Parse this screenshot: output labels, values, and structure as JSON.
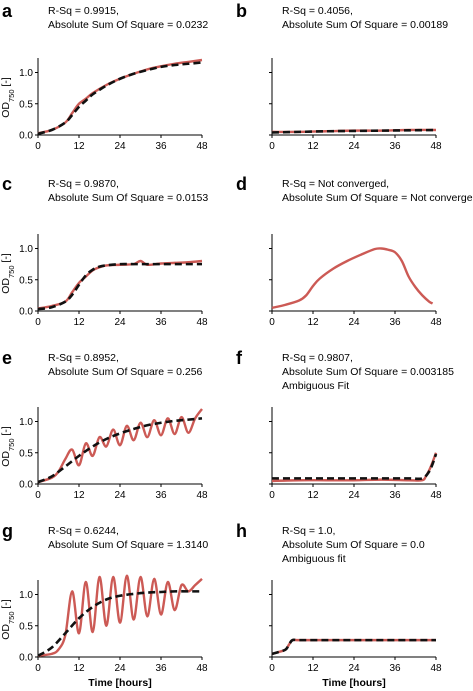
{
  "figure": {
    "ylabel_main": "OD",
    "ylabel_sub": "750",
    "ylabel_unit": " [-]",
    "xlabel": "Time [hours]"
  },
  "colors": {
    "data": "#cc5a55",
    "fit": "#111111"
  },
  "chart_data": [
    {
      "panel": "a",
      "type": "line",
      "xlabel": "",
      "ylabel": "OD750 [-]",
      "annotations": [
        "R-Sq = 0.9915,",
        "Absolute Sum Of Square = 0.0232"
      ],
      "xlim": [
        0,
        48
      ],
      "ylim": [
        0,
        1.2
      ],
      "xticks": [
        "0",
        "12",
        "24",
        "36",
        "48"
      ],
      "yticks": [
        "0.0",
        "0.5",
        "1.0"
      ],
      "series": [
        {
          "role": "data",
          "x": [
            0,
            4,
            8,
            10,
            12,
            14,
            16,
            20,
            24,
            28,
            32,
            36,
            40,
            44,
            48
          ],
          "y": [
            0.03,
            0.08,
            0.2,
            0.35,
            0.5,
            0.58,
            0.67,
            0.8,
            0.9,
            0.98,
            1.05,
            1.1,
            1.14,
            1.17,
            1.2
          ]
        },
        {
          "role": "fit",
          "x": [
            0,
            4,
            8,
            10,
            12,
            14,
            16,
            20,
            24,
            28,
            32,
            36,
            40,
            44,
            48
          ],
          "y": [
            0.02,
            0.08,
            0.2,
            0.32,
            0.45,
            0.55,
            0.65,
            0.79,
            0.9,
            0.98,
            1.04,
            1.09,
            1.12,
            1.14,
            1.16
          ]
        }
      ]
    },
    {
      "panel": "b",
      "type": "line",
      "xlabel": "",
      "ylabel": "",
      "annotations": [
        "R-Sq = 0.4056,",
        "Absolute Sum Of Square = 0.00189"
      ],
      "xlim": [
        0,
        48
      ],
      "ylim": [
        0,
        1.2
      ],
      "xticks": [
        "0",
        "12",
        "24",
        "36",
        "48"
      ],
      "yticks": [],
      "series": [
        {
          "role": "data",
          "x": [
            0,
            8,
            16,
            24,
            32,
            40,
            48
          ],
          "y": [
            0.05,
            0.05,
            0.06,
            0.07,
            0.07,
            0.08,
            0.08
          ]
        },
        {
          "role": "fit",
          "x": [
            0,
            8,
            16,
            24,
            32,
            40,
            48
          ],
          "y": [
            0.04,
            0.05,
            0.06,
            0.065,
            0.07,
            0.075,
            0.08
          ]
        }
      ]
    },
    {
      "panel": "c",
      "type": "line",
      "xlabel": "",
      "ylabel": "OD750 [-]",
      "annotations": [
        "R-Sq = 0.9870,",
        "Absolute Sum Of Square = 0.0153"
      ],
      "xlim": [
        0,
        48
      ],
      "ylim": [
        0,
        1.2
      ],
      "xticks": [
        "0",
        "12",
        "24",
        "36",
        "48"
      ],
      "yticks": [
        "0.0",
        "0.5",
        "1.0"
      ],
      "series": [
        {
          "role": "data",
          "x": [
            0,
            4,
            8,
            10,
            12,
            14,
            16,
            18,
            20,
            24,
            28,
            30,
            32,
            36,
            40,
            44,
            48
          ],
          "y": [
            0.04,
            0.08,
            0.15,
            0.3,
            0.45,
            0.55,
            0.65,
            0.7,
            0.73,
            0.74,
            0.75,
            0.8,
            0.74,
            0.76,
            0.77,
            0.78,
            0.8
          ]
        },
        {
          "role": "fit",
          "x": [
            0,
            4,
            8,
            10,
            12,
            14,
            16,
            18,
            20,
            24,
            28,
            32,
            36,
            40,
            44,
            48
          ],
          "y": [
            0.03,
            0.06,
            0.15,
            0.26,
            0.42,
            0.57,
            0.66,
            0.71,
            0.73,
            0.75,
            0.75,
            0.75,
            0.75,
            0.75,
            0.75,
            0.75
          ]
        }
      ]
    },
    {
      "panel": "d",
      "type": "line",
      "xlabel": "",
      "ylabel": "",
      "annotations": [
        "R-Sq = Not converged,",
        "Absolute Sum Of Square = Not converged"
      ],
      "xlim": [
        0,
        48
      ],
      "ylim": [
        0,
        1.2
      ],
      "xticks": [
        "0",
        "12",
        "24",
        "36",
        "48"
      ],
      "yticks": [],
      "series": [
        {
          "role": "data",
          "x": [
            0,
            4,
            8,
            10,
            12,
            14,
            18,
            22,
            26,
            30,
            32,
            34,
            36,
            38,
            40,
            42,
            44,
            46,
            47
          ],
          "y": [
            0.05,
            0.1,
            0.17,
            0.25,
            0.4,
            0.52,
            0.68,
            0.8,
            0.9,
            0.99,
            1.0,
            0.98,
            0.94,
            0.8,
            0.55,
            0.38,
            0.25,
            0.15,
            0.12
          ]
        }
      ]
    },
    {
      "panel": "e",
      "type": "line",
      "xlabel": "",
      "ylabel": "OD750 [-]",
      "annotations": [
        "R-Sq = 0.8952,",
        "Absolute Sum Of Square = 0.256"
      ],
      "xlim": [
        0,
        48
      ],
      "ylim": [
        0,
        1.2
      ],
      "xticks": [
        "0",
        "12",
        "24",
        "36",
        "48"
      ],
      "yticks": [
        "0.0",
        "0.5",
        "1.0"
      ],
      "series": [
        {
          "role": "data",
          "x": [
            0,
            4,
            6,
            8,
            10,
            12,
            14,
            16,
            18,
            20,
            22,
            24,
            26,
            28,
            30,
            32,
            34,
            36,
            38,
            40,
            42,
            44,
            46,
            48
          ],
          "y": [
            0.03,
            0.1,
            0.2,
            0.4,
            0.55,
            0.3,
            0.65,
            0.45,
            0.75,
            0.6,
            0.87,
            0.62,
            0.93,
            0.7,
            0.98,
            0.75,
            1.02,
            0.78,
            1.05,
            0.8,
            1.07,
            0.82,
            1.05,
            1.2
          ]
        },
        {
          "role": "fit",
          "x": [
            0,
            4,
            8,
            12,
            16,
            20,
            24,
            28,
            32,
            36,
            40,
            44,
            48
          ],
          "y": [
            0.03,
            0.12,
            0.28,
            0.45,
            0.6,
            0.72,
            0.81,
            0.88,
            0.94,
            0.98,
            1.01,
            1.03,
            1.05
          ]
        }
      ]
    },
    {
      "panel": "f",
      "type": "line",
      "xlabel": "",
      "ylabel": "",
      "annotations": [
        "R-Sq = 0.9807,",
        "Absolute Sum Of Square = 0.003185",
        "Ambiguous Fit"
      ],
      "xlim": [
        0,
        48
      ],
      "ylim": [
        0,
        1.2
      ],
      "xticks": [
        "0",
        "12",
        "24",
        "36",
        "48"
      ],
      "yticks": [],
      "series": [
        {
          "role": "data",
          "x": [
            0,
            8,
            16,
            24,
            32,
            40,
            44,
            45,
            46,
            47,
            48
          ],
          "y": [
            0.05,
            0.06,
            0.06,
            0.06,
            0.07,
            0.06,
            0.06,
            0.12,
            0.22,
            0.35,
            0.5
          ]
        },
        {
          "role": "fit",
          "x": [
            0,
            8,
            16,
            24,
            32,
            40,
            44,
            46,
            47,
            48
          ],
          "y": [
            0.09,
            0.09,
            0.09,
            0.09,
            0.09,
            0.09,
            0.09,
            0.2,
            0.32,
            0.48
          ]
        }
      ]
    },
    {
      "panel": "g",
      "type": "line",
      "xlabel": "Time [hours]",
      "ylabel": "OD750 [-]",
      "annotations": [
        "R-Sq = 0.6244,",
        "Absolute Sum Of Square = 1.3140"
      ],
      "xlim": [
        0,
        48
      ],
      "ylim": [
        0,
        1.2
      ],
      "xticks": [
        "0",
        "12",
        "24",
        "36",
        "48"
      ],
      "yticks": [
        "0.0",
        "0.5",
        "1.0"
      ],
      "series": [
        {
          "role": "data",
          "x": [
            0,
            4,
            6,
            8,
            10,
            12,
            14,
            16,
            18,
            20,
            22,
            24,
            26,
            28,
            30,
            32,
            34,
            36,
            38,
            40,
            42,
            44,
            46,
            48
          ],
          "y": [
            0.02,
            0.05,
            0.12,
            0.35,
            1.05,
            0.38,
            1.2,
            0.4,
            1.28,
            0.5,
            1.28,
            0.55,
            1.3,
            0.6,
            1.28,
            0.65,
            1.25,
            0.68,
            1.2,
            0.75,
            1.15,
            1.05,
            1.15,
            1.25
          ]
        },
        {
          "role": "fit",
          "x": [
            0,
            4,
            8,
            12,
            16,
            20,
            24,
            28,
            32,
            36,
            40,
            44,
            48
          ],
          "y": [
            0.02,
            0.15,
            0.38,
            0.62,
            0.8,
            0.92,
            0.98,
            1.01,
            1.03,
            1.04,
            1.05,
            1.05,
            1.05
          ]
        }
      ]
    },
    {
      "panel": "h",
      "type": "line",
      "xlabel": "Time [hours]",
      "ylabel": "",
      "annotations": [
        "R-Sq = 1.0,",
        "Absolute Sum Of Square = 0.0",
        "Ambiguous fit"
      ],
      "xlim": [
        0,
        48
      ],
      "ylim": [
        0,
        1.2
      ],
      "xticks": [
        "0",
        "12",
        "24",
        "36",
        "48"
      ],
      "yticks": [],
      "series": [
        {
          "role": "data",
          "x": [
            0,
            2,
            4,
            5,
            6,
            8,
            16,
            24,
            32,
            40,
            48
          ],
          "y": [
            0.05,
            0.08,
            0.12,
            0.2,
            0.27,
            0.27,
            0.27,
            0.27,
            0.27,
            0.27,
            0.27
          ]
        },
        {
          "role": "fit",
          "x": [
            0,
            2,
            4,
            5,
            6,
            8,
            16,
            24,
            32,
            40,
            48
          ],
          "y": [
            0.05,
            0.08,
            0.12,
            0.2,
            0.27,
            0.27,
            0.27,
            0.27,
            0.27,
            0.27,
            0.27
          ]
        }
      ]
    }
  ]
}
